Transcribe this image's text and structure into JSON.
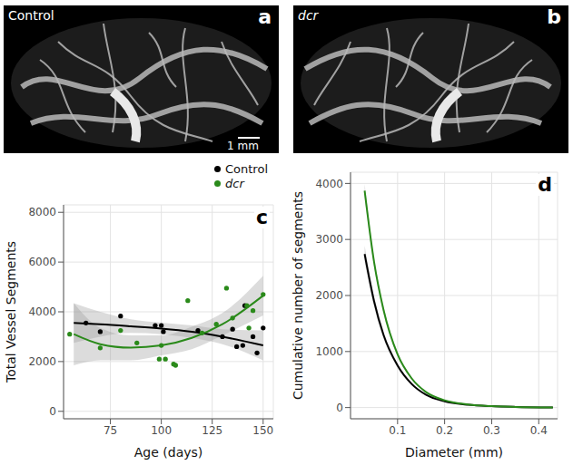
{
  "panels": [
    {
      "letter": "a",
      "label": "Control",
      "scale_bar": "1 mm"
    },
    {
      "letter": "b",
      "label": "dcr"
    }
  ],
  "chart_data": [
    {
      "type": "scatter",
      "letter": "c",
      "x_label": "Age (days)",
      "y_label": "Total Vessel Segments",
      "xlim": [
        52,
        155
      ],
      "xticks": [
        75,
        100,
        125,
        150
      ],
      "ylim": [
        -300,
        8300
      ],
      "yticks": [
        0,
        2000,
        4000,
        6000,
        8000
      ],
      "grid": true,
      "legend": "top",
      "series": [
        {
          "name": "Control",
          "color": "#000000",
          "x": [
            63,
            70,
            80,
            97,
            100,
            101,
            118,
            130,
            135,
            137,
            140,
            141,
            145,
            147,
            150
          ],
          "values": [
            3550,
            3200,
            3830,
            3450,
            3450,
            3200,
            3250,
            3000,
            3300,
            2600,
            2650,
            4250,
            3000,
            2350,
            3350
          ],
          "fit": {
            "x": [
              57,
              70,
              85,
              100,
              115,
              130,
              150
            ],
            "y": [
              3550,
              3500,
              3420,
              3330,
              3200,
              3000,
              2650
            ],
            "lower": [
              2750,
              3000,
              3150,
              3100,
              2950,
              2700,
              2050
            ],
            "upper": [
              4350,
              4000,
              3700,
              3560,
              3450,
              3300,
              3250
            ]
          }
        },
        {
          "name": "dcr",
          "color": "#2a8a1a",
          "x": [
            55,
            70,
            80,
            88,
            99,
            100,
            102,
            106,
            107,
            113,
            120,
            127,
            132,
            135,
            142,
            143,
            145,
            150
          ],
          "values": [
            3100,
            2550,
            3250,
            2750,
            2100,
            2650,
            2100,
            1900,
            1850,
            4450,
            3150,
            3500,
            4950,
            3750,
            4250,
            3350,
            4050,
            4700
          ],
          "fit": {
            "x": [
              57,
              70,
              85,
              100,
              115,
              130,
              150
            ],
            "y": [
              3100,
              2700,
              2560,
              2650,
              2950,
              3500,
              4650
            ],
            "lower": [
              1850,
              2050,
              2050,
              2250,
              2500,
              3050,
              3850
            ],
            "upper": [
              4350,
              3350,
              3050,
              3050,
              3400,
              3950,
              5450
            ]
          }
        }
      ]
    },
    {
      "type": "line",
      "letter": "d",
      "x_label": "Diameter (mm)",
      "y_label": "Cumulative number of segments",
      "xlim": [
        0,
        0.44
      ],
      "xticks": [
        0.1,
        0.2,
        0.3,
        0.4
      ],
      "ylim": [
        -200,
        4200
      ],
      "yticks": [
        0,
        1000,
        2000,
        3000,
        4000
      ],
      "grid": true,
      "series": [
        {
          "name": "Control",
          "color": "#000000",
          "x": [
            0.03,
            0.05,
            0.07,
            0.1,
            0.13,
            0.16,
            0.2,
            0.25,
            0.3,
            0.35,
            0.43
          ],
          "values": [
            2740,
            1900,
            1300,
            750,
            420,
            230,
            110,
            50,
            25,
            12,
            3
          ],
          "lower": [
            2590,
            1800,
            1230,
            710,
            395,
            215,
            100,
            45,
            20,
            9,
            1
          ],
          "upper": [
            2890,
            2000,
            1370,
            790,
            445,
            245,
            120,
            55,
            30,
            15,
            5
          ]
        },
        {
          "name": "dcr",
          "color": "#2a8a1a",
          "x": [
            0.03,
            0.05,
            0.07,
            0.1,
            0.13,
            0.16,
            0.2,
            0.25,
            0.3,
            0.35,
            0.43
          ],
          "values": [
            3870,
            2600,
            1750,
            950,
            520,
            280,
            130,
            55,
            25,
            12,
            3
          ],
          "lower": [
            3750,
            2520,
            1690,
            915,
            500,
            268,
            122,
            50,
            21,
            9,
            1
          ],
          "upper": [
            3990,
            2680,
            1810,
            985,
            540,
            292,
            138,
            60,
            29,
            15,
            5
          ]
        }
      ]
    }
  ]
}
